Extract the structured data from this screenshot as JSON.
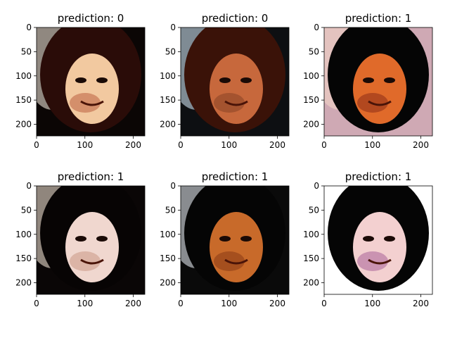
{
  "figure": {
    "panels": [
      {
        "title": "prediction: 0",
        "palette": {
          "bg": "#0b0605",
          "hair": "#2a0c08",
          "skin": "#f2c9a0",
          "light": "#fff4e6",
          "accent": "#b04a2a"
        }
      },
      {
        "title": "prediction: 0",
        "palette": {
          "bg": "#0d0f12",
          "hair": "#3a1208",
          "skin": "#c7683c",
          "light": "#dff3ff",
          "accent": "#7a3a1e"
        }
      },
      {
        "title": "prediction: 1",
        "palette": {
          "bg": "#cfa9b4",
          "hair": "#050505",
          "skin": "#e06a2a",
          "light": "#f5d9c9",
          "accent": "#7a1f12"
        }
      },
      {
        "title": "prediction: 1",
        "palette": {
          "bg": "#0a0606",
          "hair": "#070404",
          "skin": "#f0d7cf",
          "light": "#fff0e0",
          "accent": "#c28a73"
        }
      },
      {
        "title": "prediction: 1",
        "palette": {
          "bg": "#0a0a0a",
          "hair": "#050505",
          "skin": "#c86a2a",
          "light": "#f2f7ff",
          "accent": "#7a2f10"
        }
      },
      {
        "title": "prediction: 1",
        "palette": {
          "bg": "#ffffff",
          "hair": "#050505",
          "skin": "#f3d0d0",
          "light": "#ffffff",
          "accent": "#9a4a8c"
        }
      }
    ],
    "x_ticks": [
      "0",
      "100",
      "200"
    ],
    "y_ticks": [
      "0",
      "50",
      "100",
      "150",
      "200"
    ]
  }
}
